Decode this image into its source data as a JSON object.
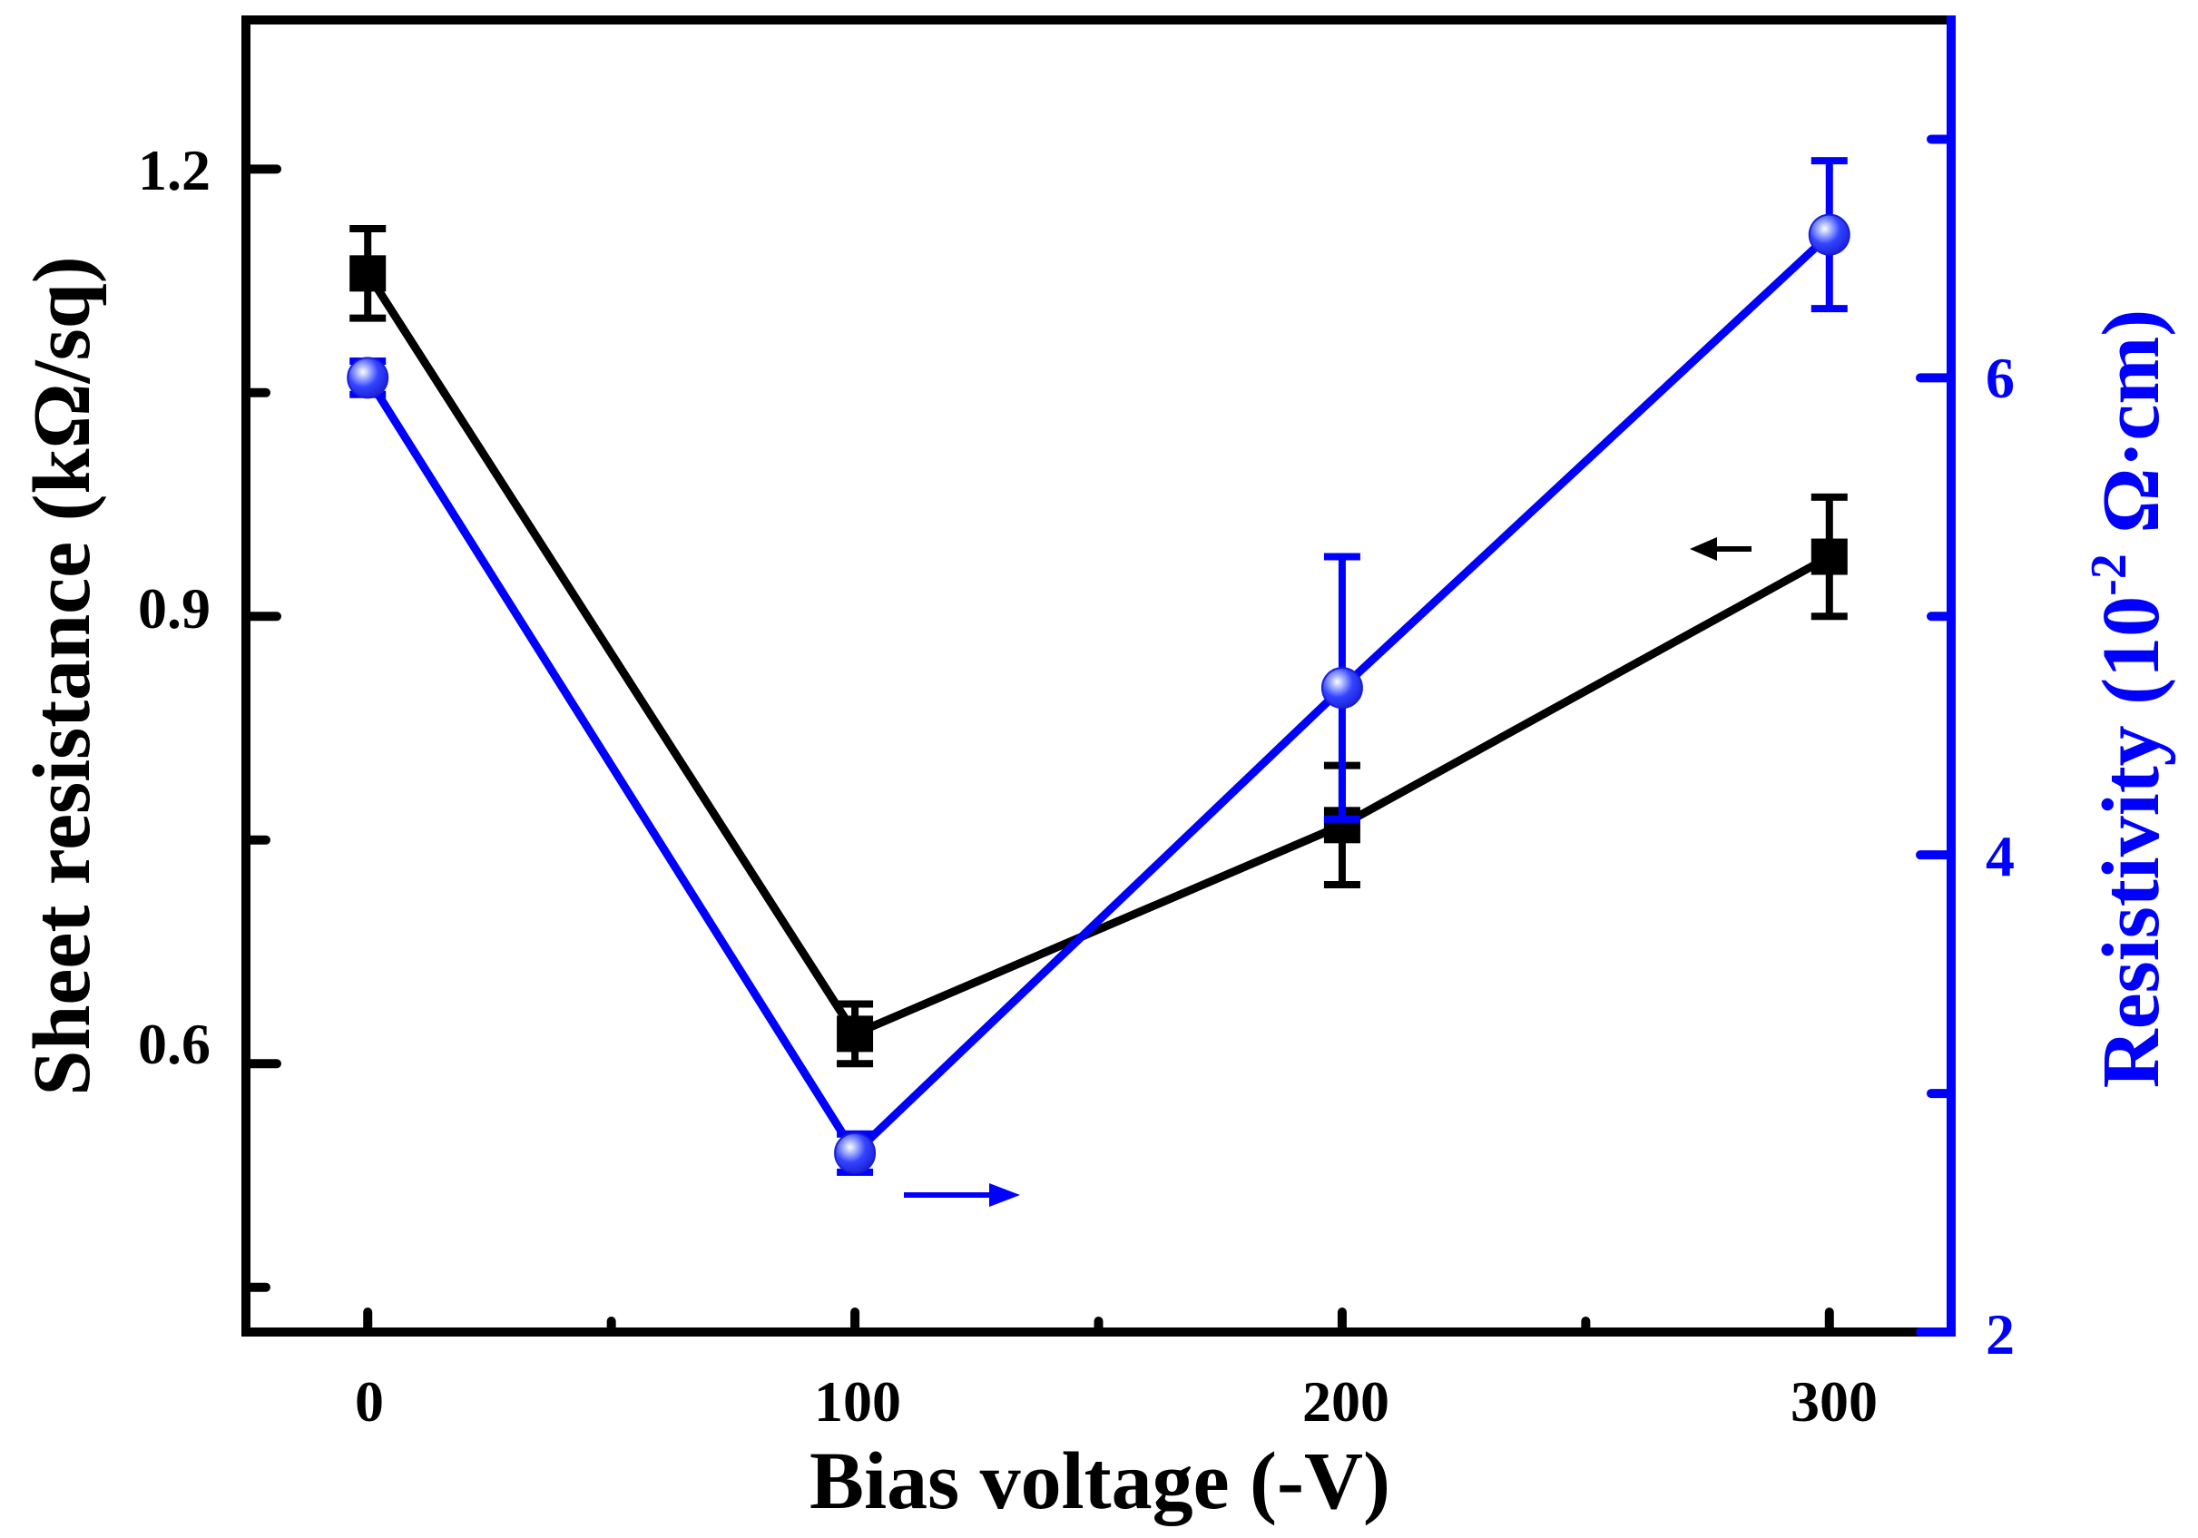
{
  "chart_data": {
    "type": "line",
    "title": "",
    "xlabel": "Bias voltage (-V)",
    "ylabel_left": "Sheet resistance (kΩ/sq)",
    "ylabel_right_prefix": "Resistivity (10",
    "ylabel_right_exponent": "-2",
    "ylabel_right_suffix": " Ω·cm)",
    "xlim": [
      -25,
      325
    ],
    "ylim_left": [
      0.42,
      1.3
    ],
    "ylim_right": [
      2,
      7.5
    ],
    "x_ticks": [
      0,
      100,
      200,
      300
    ],
    "x_tick_labels": [
      "0",
      "100",
      "200",
      "300"
    ],
    "x_minor_ticks": [
      50,
      150,
      250
    ],
    "y_left_ticks": [
      0.6,
      0.9,
      1.2
    ],
    "y_left_tick_labels": [
      "0.6",
      "0.9",
      "1.2"
    ],
    "y_left_minor_ticks": [
      0.45,
      0.75,
      1.05
    ],
    "y_right_ticks": [
      2,
      4,
      6
    ],
    "y_right_tick_labels": [
      "2",
      "4",
      "6"
    ],
    "y_right_minor_ticks": [
      3,
      5,
      7
    ],
    "grid": false,
    "series": [
      {
        "name": "Sheet resistance",
        "axis": "left",
        "color": "#000000",
        "marker": "square",
        "x": [
          0,
          100,
          200,
          300
        ],
        "values": [
          1.13,
          0.62,
          0.76,
          0.94
        ],
        "errors": [
          0.03,
          0.02,
          0.04,
          0.04
        ]
      },
      {
        "name": "Resistivity",
        "axis": "right",
        "color": "#0000ff",
        "marker": "sphere",
        "x": [
          0,
          100,
          200,
          300
        ],
        "values": [
          6.0,
          2.75,
          4.7,
          6.6
        ],
        "errors": [
          0.07,
          0.08,
          0.55,
          0.31
        ]
      }
    ],
    "annotations": [
      {
        "type": "arrow",
        "direction": "left",
        "target_axis": "left",
        "color": "#000000"
      },
      {
        "type": "arrow",
        "direction": "right",
        "target_axis": "right",
        "color": "#0000ff"
      }
    ]
  }
}
